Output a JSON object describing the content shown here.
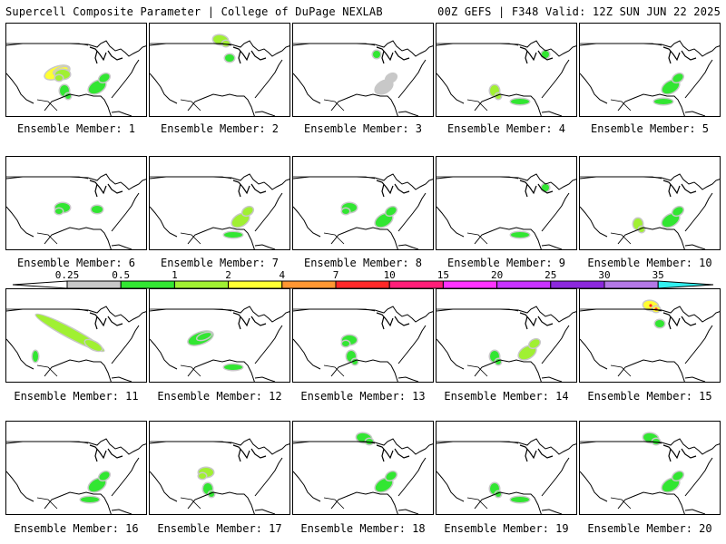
{
  "header": {
    "left": "Supercell Composite Parameter | College of DuPage NEXLAB",
    "right": "00Z GEFS | F348 Valid: 12Z SUN JUN 22 2025"
  },
  "colorbar": {
    "labels": [
      "0.25",
      "0.5",
      "1",
      "2",
      "4",
      "7",
      "10",
      "15",
      "20",
      "25",
      "30",
      "35"
    ],
    "colors": [
      "#ffffff",
      "#c8c8c8",
      "#32e632",
      "#a0f032",
      "#ffff32",
      "#ff9632",
      "#ff2828",
      "#ff1e78",
      "#ff32ff",
      "#c832ff",
      "#8c28dc",
      "#b478e6",
      "#32f0f0"
    ]
  },
  "panels": [
    {
      "label": "Ensemble Member: 1",
      "fields": [
        {
          "region": "southern-plains",
          "level": "4"
        },
        {
          "region": "central-plains",
          "level": "2"
        },
        {
          "region": "texas",
          "level": "1"
        },
        {
          "region": "southeast",
          "level": "0.5"
        }
      ]
    },
    {
      "label": "Ensemble Member: 2",
      "fields": [
        {
          "region": "northern-plains",
          "level": "2"
        },
        {
          "region": "midwest",
          "level": "0.5"
        }
      ]
    },
    {
      "label": "Ensemble Member: 3",
      "fields": [
        {
          "region": "great-lakes",
          "level": "1"
        },
        {
          "region": "southeast",
          "level": "0.25"
        }
      ]
    },
    {
      "label": "Ensemble Member: 4",
      "fields": [
        {
          "region": "texas",
          "level": "2"
        },
        {
          "region": "northeast",
          "level": "1"
        },
        {
          "region": "gulf-coast",
          "level": "0.5"
        }
      ]
    },
    {
      "label": "Ensemble Member: 5",
      "fields": [
        {
          "region": "gulf-coast",
          "level": "1"
        },
        {
          "region": "southeast",
          "level": "0.5"
        }
      ]
    },
    {
      "label": "Ensemble Member: 6",
      "fields": [
        {
          "region": "central-plains",
          "level": "1"
        },
        {
          "region": "ohio-valley",
          "level": "0.5"
        }
      ]
    },
    {
      "label": "Ensemble Member: 7",
      "fields": [
        {
          "region": "southeast",
          "level": "2"
        },
        {
          "region": "gulf-coast",
          "level": "1"
        }
      ]
    },
    {
      "label": "Ensemble Member: 8",
      "fields": [
        {
          "region": "central-plains",
          "level": "1"
        },
        {
          "region": "southeast",
          "level": "0.5"
        }
      ]
    },
    {
      "label": "Ensemble Member: 9",
      "fields": [
        {
          "region": "northeast",
          "level": "1"
        },
        {
          "region": "gulf-coast",
          "level": "0.5"
        }
      ]
    },
    {
      "label": "Ensemble Member: 10",
      "fields": [
        {
          "region": "texas",
          "level": "2"
        },
        {
          "region": "southeast",
          "level": "1"
        }
      ]
    },
    {
      "label": "Ensemble Member: 11",
      "fields": [
        {
          "region": "northwest-to-midwest",
          "level": "2"
        },
        {
          "region": "desert-southwest",
          "level": "0.5"
        }
      ]
    },
    {
      "label": "Ensemble Member: 12",
      "fields": [
        {
          "region": "southern-plains",
          "level": "1"
        },
        {
          "region": "gulf-coast",
          "level": "0.5"
        }
      ]
    },
    {
      "label": "Ensemble Member: 13",
      "fields": [
        {
          "region": "central-plains",
          "level": "1"
        },
        {
          "region": "texas",
          "level": "0.5"
        }
      ]
    },
    {
      "label": "Ensemble Member: 14",
      "fields": [
        {
          "region": "southeast",
          "level": "2"
        },
        {
          "region": "texas",
          "level": "1"
        }
      ]
    },
    {
      "label": "Ensemble Member: 15",
      "fields": [
        {
          "region": "northern-plains",
          "level": "4"
        },
        {
          "region": "midwest",
          "level": "1"
        }
      ]
    },
    {
      "label": "Ensemble Member: 16",
      "fields": [
        {
          "region": "southeast",
          "level": "1"
        },
        {
          "region": "gulf-coast",
          "level": "0.5"
        }
      ]
    },
    {
      "label": "Ensemble Member: 17",
      "fields": [
        {
          "region": "central-plains",
          "level": "2"
        },
        {
          "region": "texas",
          "level": "1"
        }
      ]
    },
    {
      "label": "Ensemble Member: 18",
      "fields": [
        {
          "region": "northern-plains",
          "level": "1"
        },
        {
          "region": "southeast",
          "level": "1"
        }
      ]
    },
    {
      "label": "Ensemble Member: 19",
      "fields": [
        {
          "region": "texas",
          "level": "1"
        },
        {
          "region": "gulf-coast",
          "level": "0.5"
        }
      ]
    },
    {
      "label": "Ensemble Member: 20",
      "fields": [
        {
          "region": "northern-plains",
          "level": "0.5"
        },
        {
          "region": "southeast",
          "level": "1"
        }
      ]
    }
  ]
}
